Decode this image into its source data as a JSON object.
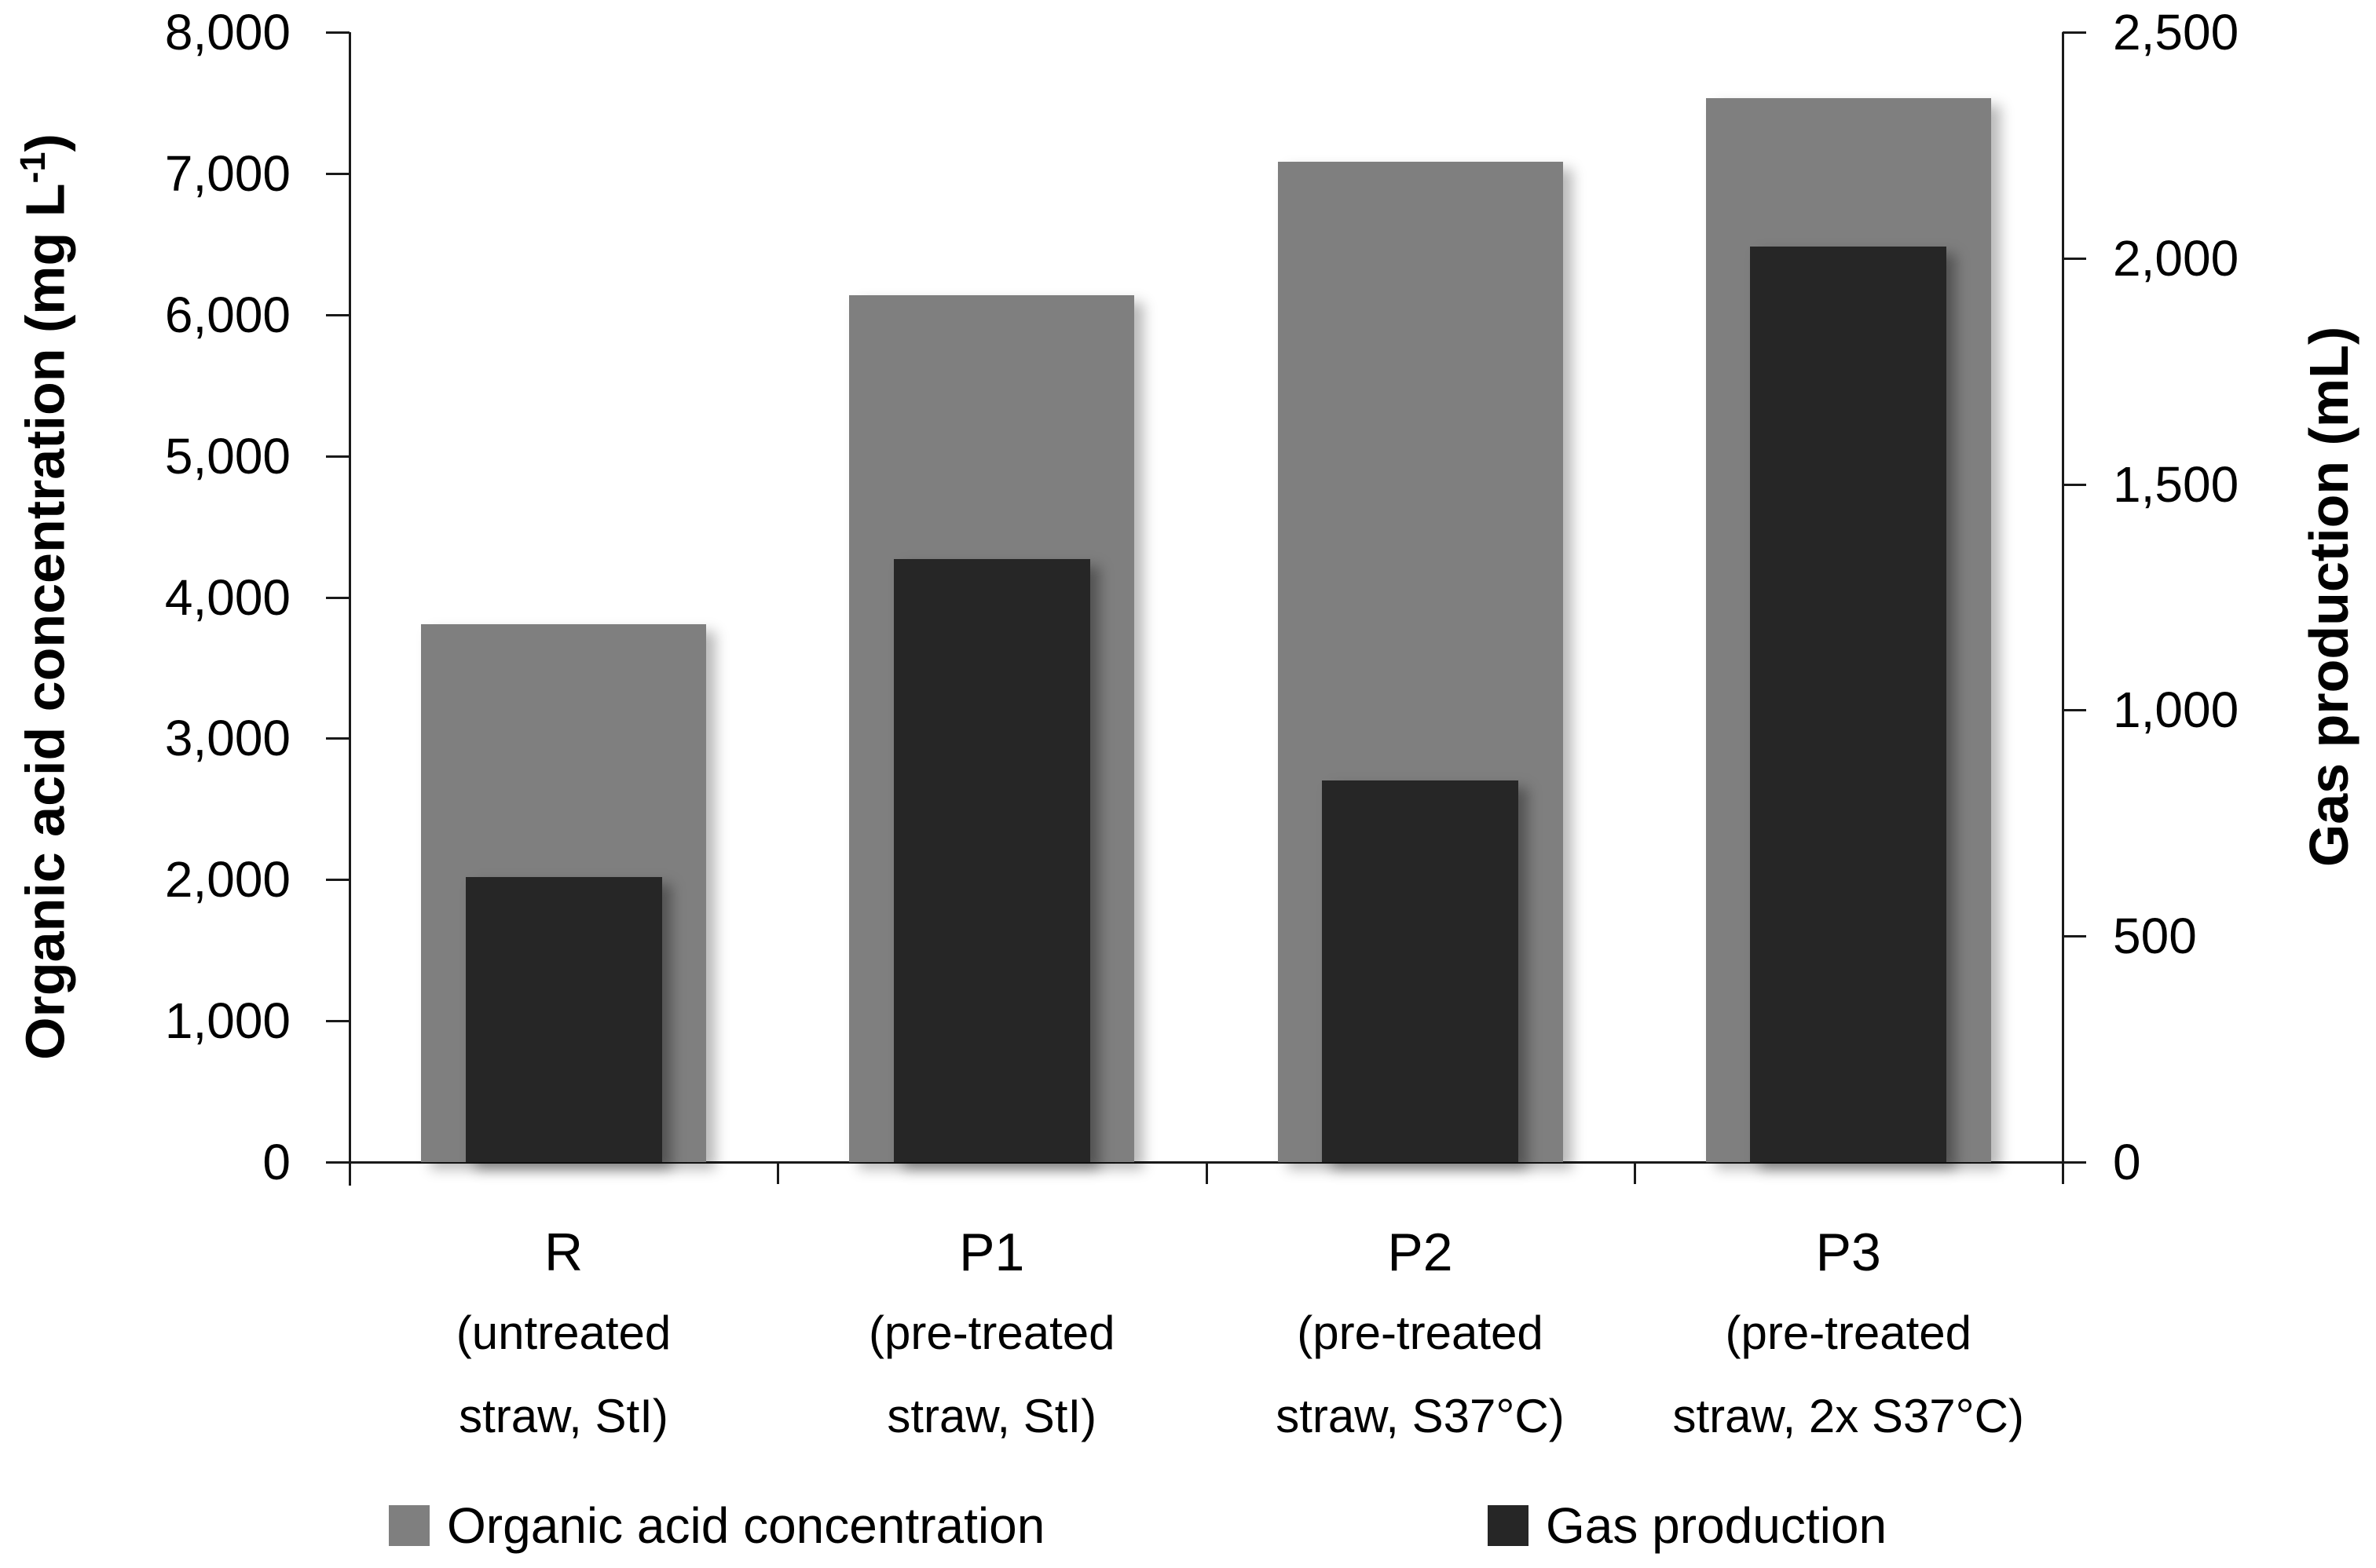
{
  "chart_data": {
    "type": "bar",
    "title": "",
    "categories": [
      {
        "name": "R",
        "desc": [
          "(untreated",
          "straw, StI)"
        ]
      },
      {
        "name": "P1",
        "desc": [
          "(pre-treated",
          "straw, StI)"
        ]
      },
      {
        "name": "P2",
        "desc": [
          "(pre-treated",
          "straw, S37°C)"
        ]
      },
      {
        "name": "P3",
        "desc": [
          "(pre-treated",
          "straw, 2x S37°C)"
        ]
      }
    ],
    "series": [
      {
        "name": "Organic acid concentration",
        "axis": "left",
        "color": "#7f7f7f",
        "values": [
          3810,
          6135,
          7080,
          7535
        ]
      },
      {
        "name": "Gas production",
        "axis": "right",
        "color": "#262626",
        "values": [
          630,
          1335,
          845,
          2025
        ]
      }
    ],
    "left_axis": {
      "title_prefix": "Organic acid concentration (mg L",
      "title_sup": "-1",
      "title_suffix": ")",
      "range": [
        0,
        8000
      ],
      "tick_step": 1000,
      "tick_labels": [
        "0",
        "1,000",
        "2,000",
        "3,000",
        "4,000",
        "5,000",
        "6,000",
        "7,000",
        "8,000"
      ]
    },
    "right_axis": {
      "title": "Gas production (mL)",
      "range": [
        0,
        2500
      ],
      "tick_step": 500,
      "tick_labels": [
        "0",
        "500",
        "1,000",
        "1,500",
        "2,000",
        "2,500"
      ]
    },
    "legend": [
      {
        "label": "Organic acid concentration",
        "color": "#7f7f7f"
      },
      {
        "label": "Gas production",
        "color": "#262626"
      }
    ],
    "grid": false,
    "legend_position": "bottom"
  }
}
